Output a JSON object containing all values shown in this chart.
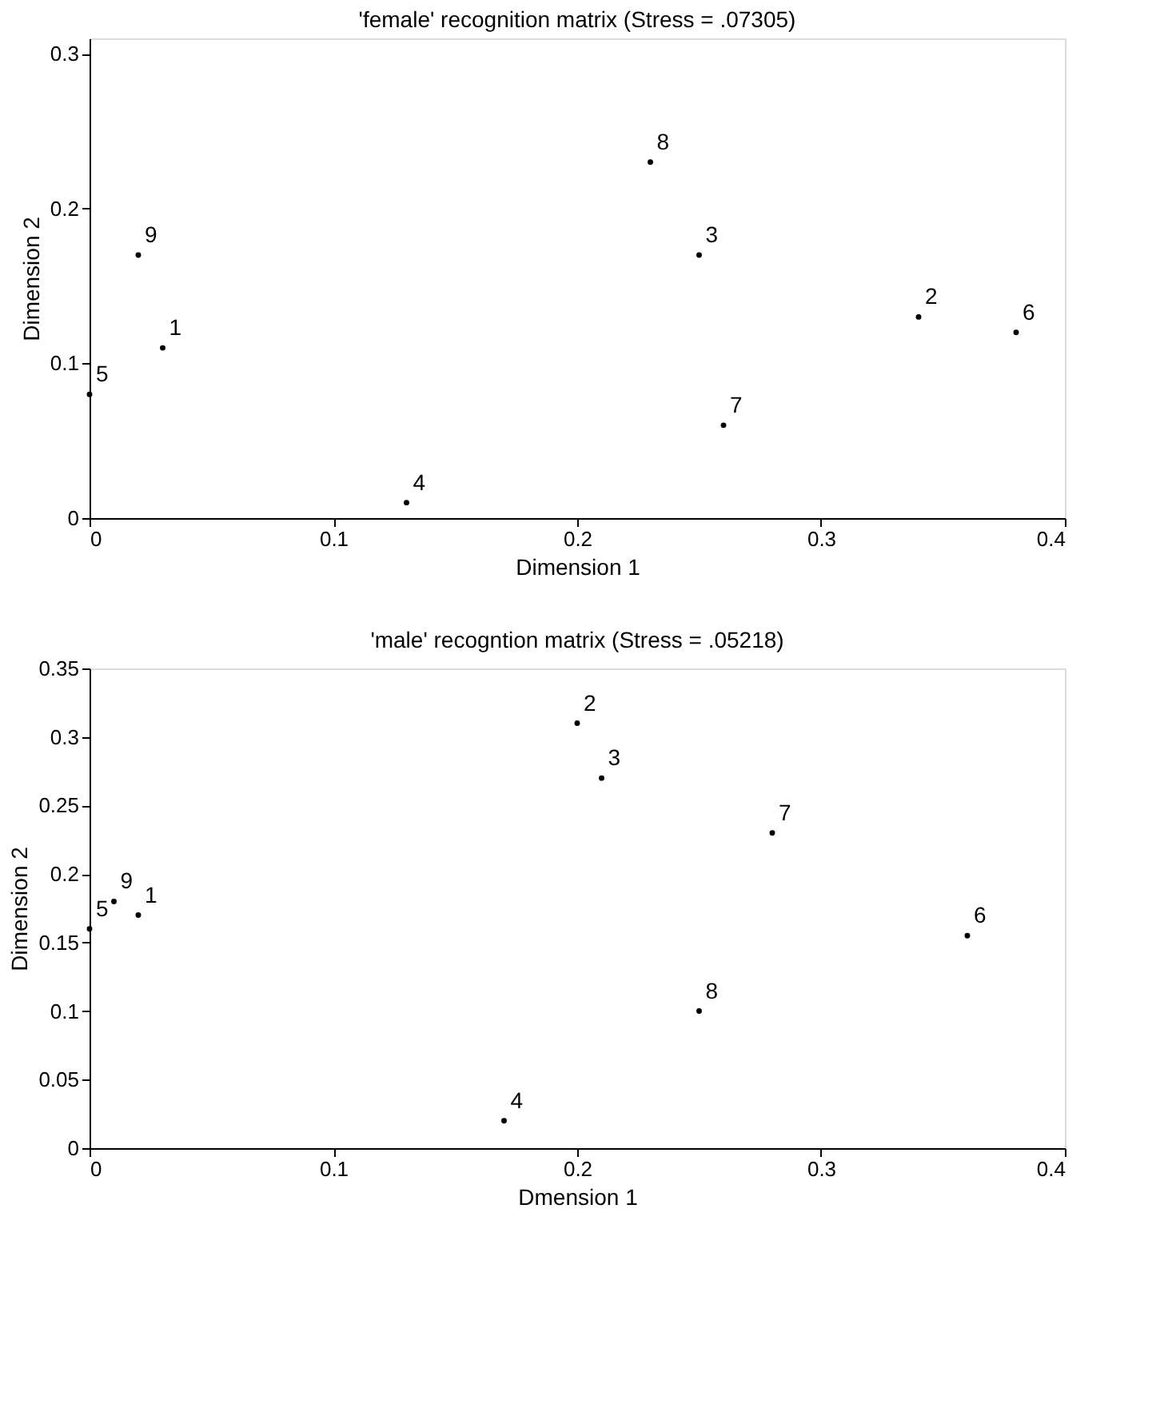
{
  "chart_data": [
    {
      "type": "scatter",
      "title": "'female' recognition matrix (Stress = .07305)",
      "xlabel": "Dimension 1",
      "ylabel": "Dimension 2",
      "x": [
        0.03,
        0.34,
        0.25,
        0.13,
        0.0,
        0.38,
        0.26,
        0.23,
        0.02
      ],
      "series": [
        {
          "color": "#000000",
          "values": [
            0.11,
            0.13,
            0.17,
            0.01,
            0.08,
            0.12,
            0.06,
            0.23,
            0.17
          ]
        }
      ],
      "annotations": [
        {
          "text": "1",
          "x": 0.03,
          "y": 0.11
        },
        {
          "text": "2",
          "x": 0.34,
          "y": 0.13
        },
        {
          "text": "3",
          "x": 0.25,
          "y": 0.17
        },
        {
          "text": "4",
          "x": 0.13,
          "y": 0.01
        },
        {
          "text": "5",
          "x": 0.0,
          "y": 0.08
        },
        {
          "text": "6",
          "x": 0.38,
          "y": 0.12
        },
        {
          "text": "7",
          "x": 0.26,
          "y": 0.06
        },
        {
          "text": "8",
          "x": 0.23,
          "y": 0.23
        },
        {
          "text": "9",
          "x": 0.02,
          "y": 0.17
        }
      ],
      "xlim": [
        0,
        0.4
      ],
      "ylim": [
        0,
        0.31
      ],
      "xticks": [
        0,
        0.1,
        0.2,
        0.3,
        0.4
      ],
      "yticks": [
        0,
        0.1,
        0.2,
        0.3
      ],
      "grid": false,
      "marker": "circle"
    },
    {
      "type": "scatter",
      "title": "'male' recogntion matrix (Stress = .05218)",
      "xlabel": "Dmension 1",
      "ylabel": "Dimension 2",
      "x": [
        0.02,
        0.2,
        0.21,
        0.17,
        0.0,
        0.36,
        0.28,
        0.25,
        0.01
      ],
      "series": [
        {
          "color": "#000000",
          "values": [
            0.17,
            0.31,
            0.27,
            0.02,
            0.16,
            0.155,
            0.23,
            0.1,
            0.18
          ]
        }
      ],
      "annotations": [
        {
          "text": "1",
          "x": 0.02,
          "y": 0.17
        },
        {
          "text": "2",
          "x": 0.2,
          "y": 0.31
        },
        {
          "text": "3",
          "x": 0.21,
          "y": 0.27
        },
        {
          "text": "4",
          "x": 0.17,
          "y": 0.02
        },
        {
          "text": "5",
          "x": 0.0,
          "y": 0.16
        },
        {
          "text": "6",
          "x": 0.36,
          "y": 0.155
        },
        {
          "text": "7",
          "x": 0.28,
          "y": 0.23
        },
        {
          "text": "8",
          "x": 0.25,
          "y": 0.1
        },
        {
          "text": "9",
          "x": 0.01,
          "y": 0.18
        }
      ],
      "xlim": [
        0,
        0.4
      ],
      "ylim": [
        0,
        0.35
      ],
      "xticks": [
        0,
        0.1,
        0.2,
        0.3,
        0.4
      ],
      "yticks": [
        0,
        0.05,
        0.1,
        0.15,
        0.2,
        0.25,
        0.3,
        0.35
      ],
      "grid": false,
      "marker": "circle"
    }
  ]
}
